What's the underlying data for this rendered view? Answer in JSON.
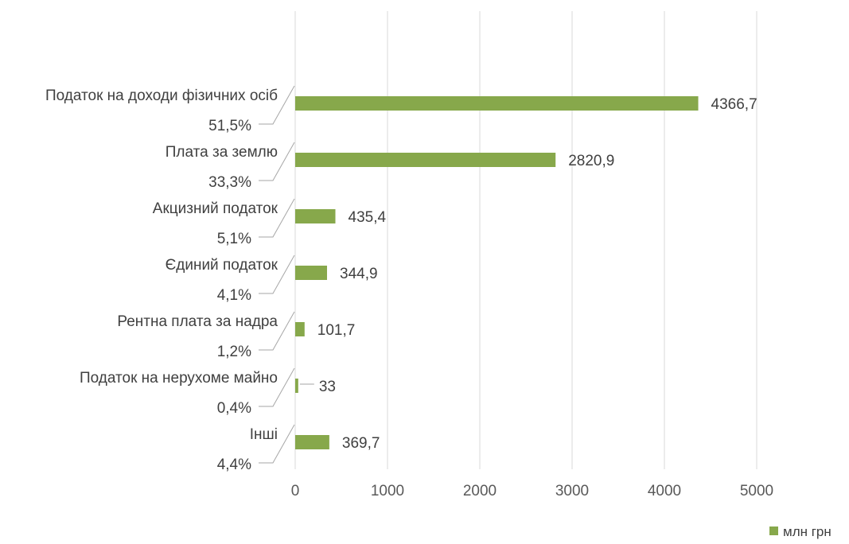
{
  "chart_data": {
    "type": "bar",
    "orientation": "horizontal",
    "categories": [
      "Податок на доходи фізичних осіб",
      "Плата за землю",
      "Акцизний податок",
      "Єдиний податок",
      "Рентна плата за надра",
      "Податок на нерухоме майно",
      "Інші"
    ],
    "percentages": [
      "51,5%",
      "33,3%",
      "5,1%",
      "4,1%",
      "1,2%",
      "0,4%",
      "4,4%"
    ],
    "series": [
      {
        "name": "млн грн",
        "values": [
          4366.7,
          2820.9,
          435.4,
          344.9,
          101.7,
          33,
          369.7
        ],
        "value_labels": [
          "4366,7",
          "2820,9",
          "435,4",
          "344,9",
          "101,7",
          "33",
          "369,7"
        ],
        "color": "#87A84B"
      }
    ],
    "xlim": [
      0,
      5000
    ],
    "x_ticks": [
      "0",
      "1000",
      "2000",
      "3000",
      "4000",
      "5000"
    ],
    "grid": true,
    "legend_position": "bottom-right"
  }
}
